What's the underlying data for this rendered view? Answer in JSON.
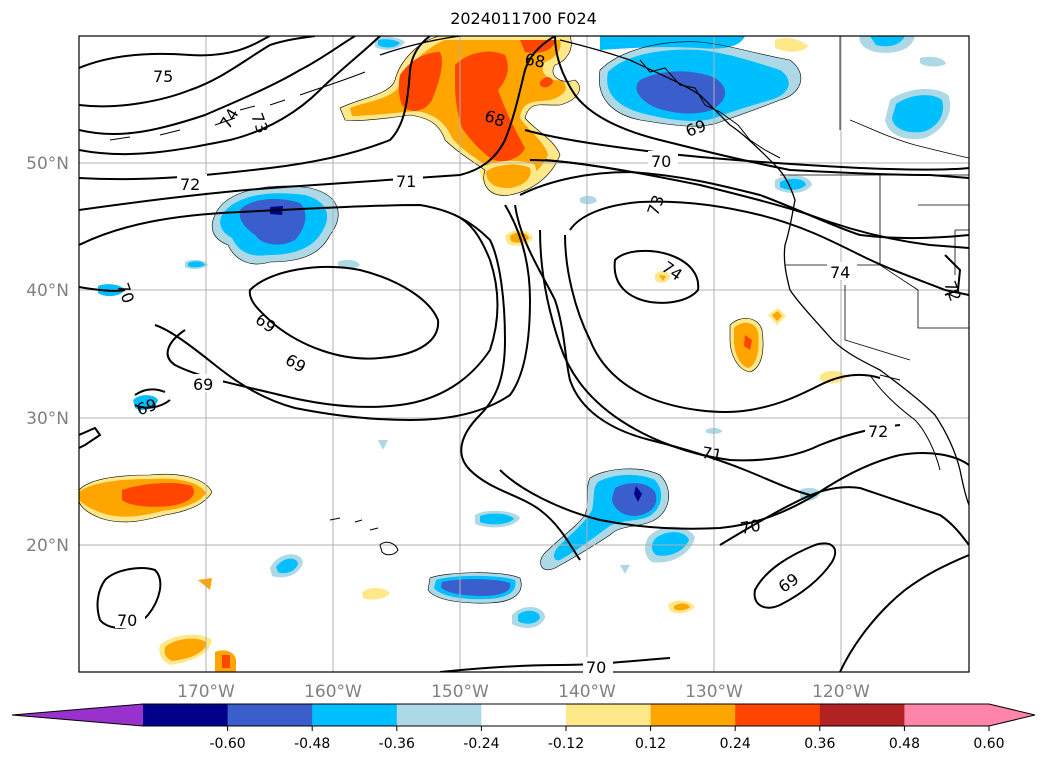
{
  "title": "2024011700 F024",
  "lat_labels": [
    "50°N",
    "40°N",
    "30°N",
    "20°N"
  ],
  "lon_labels": [
    "170°W",
    "160°W",
    "150°W",
    "140°W",
    "130°W",
    "120°W"
  ],
  "colorbar": {
    "ticks": [
      "-0.60",
      "-0.48",
      "-0.36",
      "-0.24",
      "-0.12",
      "0.12",
      "0.24",
      "0.36",
      "0.48",
      "0.60"
    ],
    "colors": [
      "#9932cc",
      "#00008b",
      "#3a5fcd",
      "#00bfff",
      "#add8e6",
      "#ffffff",
      "#ffe88a",
      "#ffa500",
      "#ff4500",
      "#b22222",
      "#ff85aa"
    ]
  },
  "contour_labels": [
    "75",
    "74",
    "73",
    "72",
    "71",
    "70",
    "68",
    "69",
    "68",
    "69",
    "73",
    "74",
    "70",
    "69",
    "69",
    "70",
    "71",
    "72",
    "74",
    "72",
    "70",
    "69",
    "70",
    "70",
    "69"
  ],
  "colors": {
    "grid": "#b0b0b0",
    "axis_label": "#808080",
    "contour": "#000000"
  }
}
